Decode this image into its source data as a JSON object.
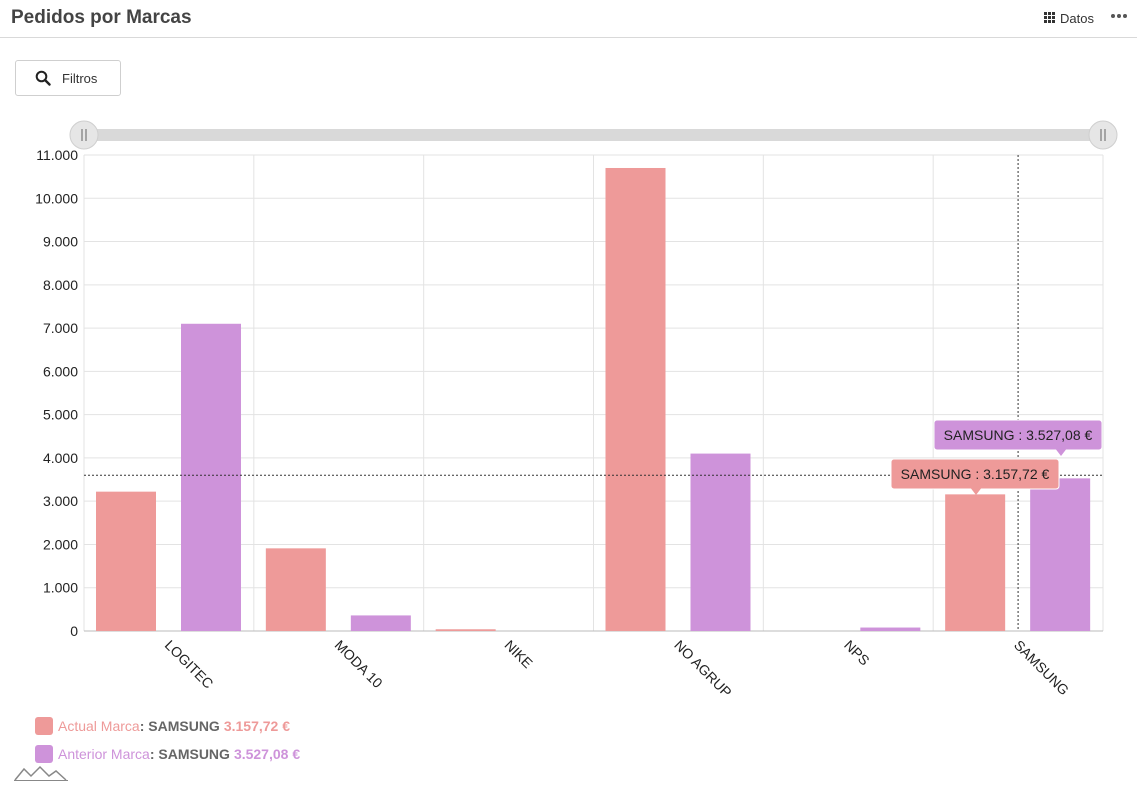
{
  "header": {
    "title": "Pedidos por Marcas",
    "datos_label": "Datos"
  },
  "toolbar": {
    "filters_label": "Filtros"
  },
  "colors": {
    "actual": "#ee9a99",
    "anterior": "#ce93da",
    "grid": "#e3e3e3",
    "scrollbar": "#d9d9d9"
  },
  "chart_data": {
    "type": "bar",
    "title": "Pedidos por Marcas",
    "categories": [
      "LOGITEC",
      "MODA 10",
      "NIKE",
      "NO AGRUP",
      "NPS",
      "SAMSUNG"
    ],
    "series": [
      {
        "name": "Actual Marca",
        "values": [
          3220,
          1910,
          40,
          10700,
          0,
          3157.72
        ]
      },
      {
        "name": "Anterior Marca",
        "values": [
          7100,
          360,
          0,
          4100,
          80,
          3527.08
        ]
      }
    ],
    "ylim": [
      0,
      11000
    ],
    "yticks": [
      "0",
      "1.000",
      "2.000",
      "3.000",
      "4.000",
      "5.000",
      "6.000",
      "7.000",
      "8.000",
      "9.000",
      "10.000",
      "11.000"
    ],
    "grid": true,
    "legend_position": "bottom-left",
    "cursor_value": 3600,
    "tooltips": [
      {
        "series": "Anterior Marca",
        "text": "SAMSUNG : 3.527,08 €"
      },
      {
        "series": "Actual Marca",
        "text": "SAMSUNG : 3.157,72 €"
      }
    ]
  },
  "legend": {
    "items": [
      {
        "label": "Actual Marca",
        "category": "SAMSUNG",
        "value": "3.157,72 €"
      },
      {
        "label": "Anterior Marca",
        "category": "SAMSUNG",
        "value": "3.527,08 €"
      }
    ]
  }
}
